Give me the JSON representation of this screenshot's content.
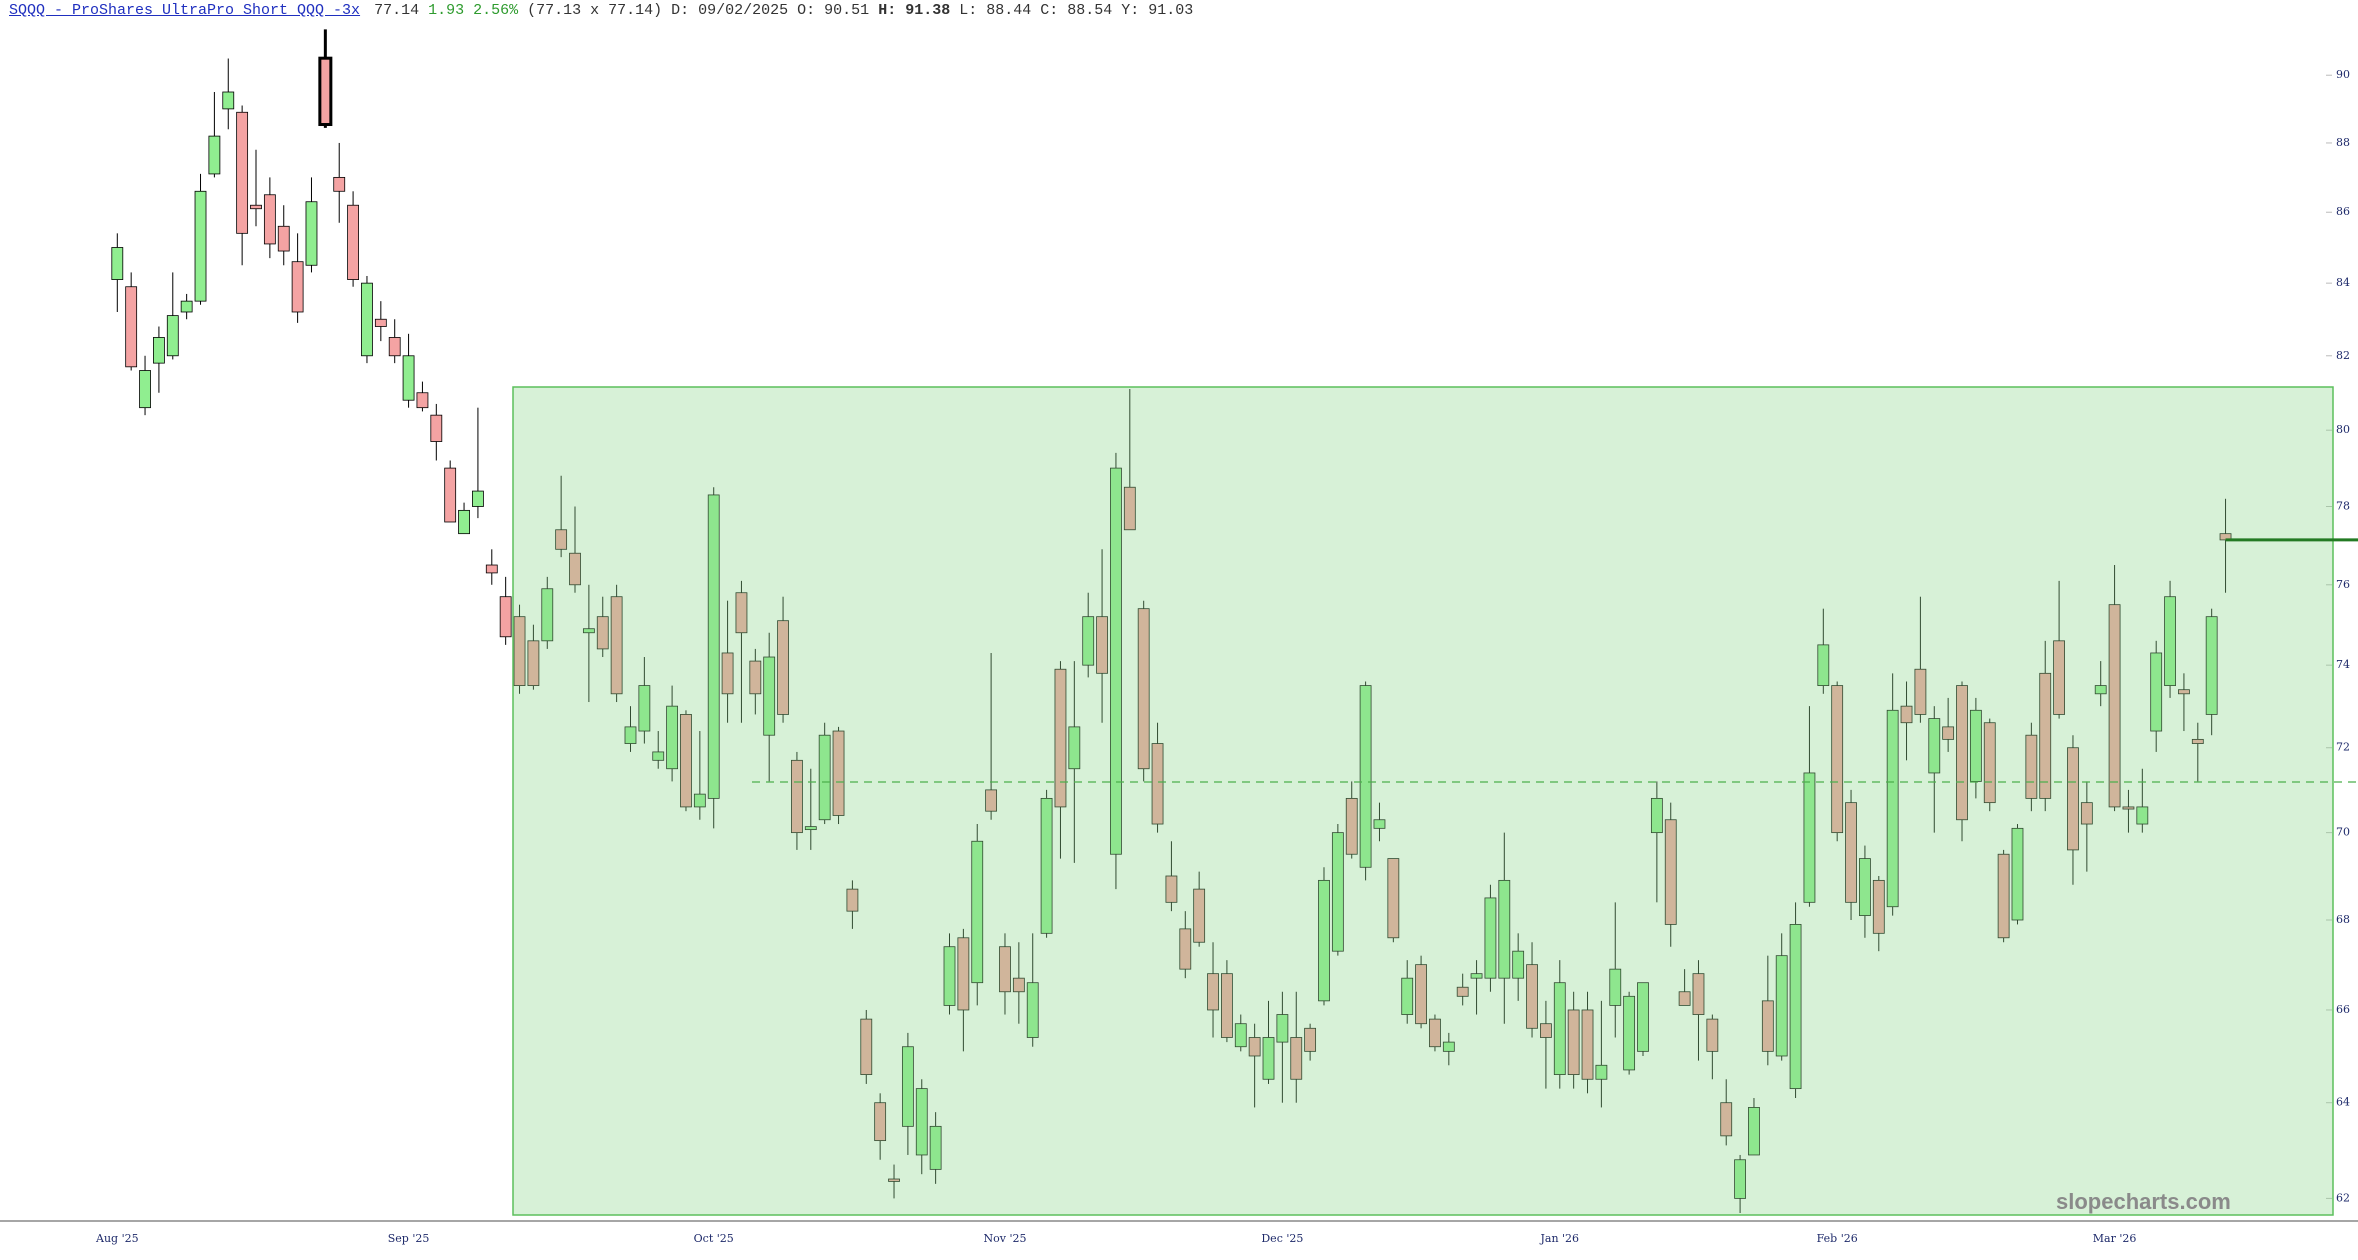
{
  "header": {
    "title": "SQQQ - ProShares UltraPro Short QQQ -3x",
    "last": "77.14",
    "change": "1.93",
    "change_pct": "2.56%",
    "quote": "(77.13 x 77.14)",
    "date": "D: 09/02/2025",
    "open": "O: 90.51",
    "high": "H: 91.38",
    "low": "L: 88.44",
    "close": "C: 88.54",
    "prev": "Y: 91.03"
  },
  "watermark": "slopecharts.com",
  "chart_data": {
    "type": "candlestick",
    "categories": [
      "Aug '25",
      null,
      null,
      null,
      null,
      null,
      null,
      null,
      null,
      null,
      null,
      null,
      null,
      null,
      null,
      null,
      null,
      null,
      null,
      null,
      null,
      "Sep '25",
      null,
      null,
      null,
      null,
      null,
      null,
      null,
      null,
      null,
      null,
      null,
      null,
      null,
      null,
      null,
      null,
      null,
      null,
      null,
      null,
      null,
      "Oct '25",
      null,
      null,
      null,
      null,
      null,
      null,
      null,
      null,
      null,
      null,
      null,
      null,
      null,
      null,
      null,
      null,
      null,
      null,
      null,
      null,
      "Nov '25",
      null,
      null,
      null,
      null,
      null,
      null,
      null,
      null,
      null,
      null,
      null,
      null,
      null,
      null,
      null,
      null,
      null,
      null,
      null,
      "Dec '25",
      null,
      null,
      null,
      null,
      null,
      null,
      null,
      null,
      null,
      null,
      null,
      null,
      null,
      null,
      null,
      null,
      null,
      null,
      null,
      "Jan '26",
      null,
      null,
      null,
      null,
      null,
      null,
      null,
      null,
      null,
      null,
      null,
      null,
      null,
      null,
      null,
      null,
      null,
      null,
      null,
      "Feb '26",
      null,
      null,
      null,
      null,
      null,
      null,
      null,
      null,
      null,
      null,
      null,
      null,
      null,
      null,
      null,
      null,
      null,
      null,
      null,
      "Mar '26",
      null,
      null,
      null,
      null,
      null,
      null,
      null,
      null
    ],
    "open": [
      84.1,
      83.9,
      80.6,
      81.8,
      82.0,
      83.2,
      83.5,
      87.1,
      89.0,
      88.9,
      86.2,
      86.5,
      85.6,
      84.6,
      84.5,
      90.51,
      87.0,
      86.2,
      82.0,
      83.0,
      82.5,
      80.8,
      81.0,
      80.4,
      79.0,
      77.3,
      78.0,
      76.5,
      75.7,
      75.2,
      74.6,
      74.6,
      77.4,
      76.8,
      74.8,
      75.2,
      75.7,
      72.1,
      72.4,
      71.7,
      71.5,
      72.8,
      70.6,
      70.8,
      74.3,
      75.8,
      74.1,
      72.3,
      75.1,
      71.7,
      70.07,
      70.3,
      72.4,
      68.7,
      65.8,
      64.0,
      62.4,
      63.5,
      62.9,
      62.6,
      66.1,
      67.6,
      66.6,
      71.0,
      67.4,
      66.7,
      65.4,
      67.7,
      73.9,
      71.5,
      74.0,
      75.2,
      69.5,
      78.5,
      75.4,
      72.1,
      69.0,
      67.8,
      68.7,
      66.8,
      66.8,
      65.2,
      65.4,
      64.5,
      65.3,
      65.4,
      65.6,
      66.2,
      67.3,
      70.8,
      69.2,
      70.1,
      69.4,
      65.9,
      67.0,
      65.8,
      65.1,
      66.5,
      66.7,
      66.7,
      66.7,
      66.7,
      67.0,
      65.7,
      64.6,
      66.0,
      66.0,
      64.5,
      66.1,
      64.7,
      65.1,
      70.0,
      70.3,
      66.4,
      66.8,
      65.8,
      64.0,
      62.0,
      62.9,
      66.2,
      65.0,
      64.3,
      68.4,
      73.5,
      73.5,
      70.7,
      68.1,
      68.9,
      68.3,
      73.0,
      73.9,
      71.4,
      72.5,
      73.5,
      71.2,
      72.6,
      69.5,
      68.0,
      72.3,
      73.8,
      74.6,
      72.0,
      70.7,
      73.3,
      75.5,
      70.6,
      70.2,
      72.4,
      73.5,
      73.4,
      72.2,
      72.8,
      77.3
    ],
    "high": [
      85.4,
      84.3,
      82.0,
      82.8,
      84.3,
      83.7,
      87.1,
      89.5,
      90.5,
      89.1,
      87.8,
      87.0,
      86.2,
      85.4,
      87.0,
      91.38,
      88.0,
      86.6,
      84.2,
      83.5,
      83.0,
      82.6,
      81.3,
      80.7,
      79.2,
      78.1,
      80.6,
      76.9,
      76.2,
      75.5,
      75.0,
      76.2,
      78.8,
      78.0,
      76.0,
      75.7,
      76.0,
      73.0,
      74.2,
      72.4,
      73.5,
      72.9,
      72.4,
      78.5,
      75.6,
      76.1,
      74.4,
      74.8,
      75.7,
      71.9,
      71.5,
      72.6,
      72.5,
      68.9,
      66.0,
      64.2,
      62.7,
      65.5,
      64.5,
      63.8,
      67.7,
      67.8,
      70.2,
      74.3,
      67.7,
      67.5,
      67.7,
      71.0,
      74.1,
      74.1,
      75.8,
      76.9,
      79.4,
      81.1,
      75.6,
      72.6,
      69.8,
      68.2,
      69.1,
      67.5,
      67.1,
      65.9,
      65.7,
      66.2,
      66.4,
      66.4,
      65.7,
      69.2,
      70.2,
      71.2,
      73.6,
      70.7,
      69.4,
      67.1,
      67.2,
      65.9,
      65.5,
      66.8,
      67.1,
      68.8,
      70.0,
      67.7,
      67.5,
      66.2,
      67.1,
      66.4,
      66.4,
      66.2,
      68.4,
      66.4,
      66.6,
      71.2,
      70.7,
      66.9,
      67.1,
      65.9,
      64.5,
      62.9,
      64.1,
      67.2,
      67.7,
      68.4,
      73.0,
      75.4,
      73.6,
      71.0,
      69.7,
      69.0,
      73.8,
      73.6,
      75.7,
      73.0,
      73.2,
      73.6,
      73.2,
      72.7,
      69.6,
      70.2,
      72.6,
      74.6,
      76.1,
      72.3,
      71.2,
      74.1,
      76.5,
      71.0,
      71.5,
      74.6,
      76.1,
      73.8,
      72.6,
      75.4,
      78.2
    ],
    "low": [
      83.2,
      81.6,
      80.4,
      81.0,
      81.9,
      83.0,
      83.4,
      87.0,
      88.4,
      84.5,
      85.6,
      84.7,
      84.5,
      82.9,
      84.3,
      88.44,
      85.7,
      83.9,
      81.8,
      82.4,
      81.8,
      80.6,
      80.5,
      79.2,
      77.6,
      77.3,
      77.7,
      76.0,
      74.5,
      73.3,
      73.4,
      74.4,
      76.7,
      75.8,
      73.1,
      74.2,
      73.1,
      71.9,
      72.1,
      71.5,
      71.2,
      70.5,
      70.3,
      70.1,
      72.6,
      72.6,
      72.8,
      71.2,
      72.6,
      69.6,
      69.6,
      70.2,
      70.2,
      67.8,
      64.4,
      62.8,
      62.0,
      62.9,
      62.5,
      62.3,
      65.9,
      65.1,
      66.1,
      70.3,
      65.9,
      65.7,
      65.2,
      67.6,
      69.4,
      69.3,
      73.7,
      72.6,
      68.7,
      77.4,
      71.2,
      70.0,
      68.2,
      66.7,
      67.4,
      65.4,
      65.3,
      65.1,
      63.9,
      64.4,
      64.0,
      64.0,
      64.9,
      66.1,
      67.2,
      69.4,
      68.9,
      69.8,
      67.5,
      65.7,
      65.6,
      65.1,
      64.8,
      66.1,
      65.9,
      66.4,
      65.7,
      66.2,
      65.4,
      64.3,
      64.3,
      64.3,
      64.2,
      63.9,
      65.4,
      64.6,
      65.0,
      68.4,
      67.4,
      66.1,
      64.9,
      64.5,
      63.1,
      61.7,
      62.9,
      64.8,
      64.9,
      64.1,
      68.3,
      73.3,
      69.8,
      68.0,
      67.6,
      67.3,
      68.1,
      71.7,
      72.6,
      70.0,
      71.9,
      69.8,
      70.8,
      70.5,
      67.5,
      67.9,
      70.5,
      70.5,
      72.7,
      68.8,
      69.1,
      73.0,
      70.5,
      70.0,
      70.0,
      71.9,
      73.2,
      72.4,
      71.2,
      72.3,
      75.8
    ],
    "close": [
      85.0,
      81.7,
      81.6,
      82.5,
      83.1,
      83.5,
      86.6,
      88.2,
      89.5,
      85.4,
      86.1,
      85.1,
      84.9,
      83.2,
      86.3,
      88.54,
      86.6,
      84.1,
      84.0,
      82.8,
      82.0,
      82.0,
      80.6,
      79.7,
      77.6,
      77.9,
      78.4,
      76.3,
      74.7,
      73.5,
      73.5,
      75.9,
      76.9,
      76.0,
      74.9,
      74.4,
      73.3,
      72.5,
      73.5,
      71.9,
      73.0,
      70.6,
      70.9,
      78.3,
      73.3,
      74.8,
      73.3,
      74.2,
      72.8,
      70.0,
      70.14,
      72.3,
      70.4,
      68.2,
      64.6,
      63.2,
      62.35,
      65.2,
      64.3,
      63.5,
      67.4,
      66.0,
      69.8,
      70.5,
      66.4,
      66.4,
      66.6,
      70.8,
      70.6,
      72.5,
      75.2,
      73.8,
      79.0,
      77.4,
      71.5,
      70.2,
      68.4,
      66.9,
      67.5,
      66.0,
      65.4,
      65.7,
      65.0,
      65.4,
      65.9,
      64.5,
      65.1,
      68.9,
      70.0,
      69.5,
      73.5,
      70.3,
      67.6,
      66.7,
      65.7,
      65.2,
      65.3,
      66.3,
      66.8,
      68.5,
      68.9,
      67.3,
      65.6,
      65.4,
      66.6,
      64.6,
      64.5,
      64.8,
      66.9,
      66.3,
      66.6,
      70.8,
      67.9,
      66.1,
      65.9,
      65.1,
      63.3,
      62.8,
      63.9,
      65.1,
      67.2,
      67.9,
      71.4,
      74.5,
      70.0,
      68.4,
      69.4,
      67.7,
      72.9,
      72.6,
      72.8,
      72.7,
      72.2,
      70.3,
      72.9,
      70.7,
      67.6,
      70.1,
      70.8,
      70.8,
      72.8,
      69.6,
      70.2,
      73.5,
      70.6,
      70.55,
      70.6,
      74.3,
      75.7,
      73.3,
      72.1,
      75.2,
      77.14
    ],
    "up_color": "#90ee90",
    "down_color": "#f4a3a3",
    "highlight_index": 15,
    "ylim": [
      61.5,
      91.5
    ],
    "yticks": [
      62,
      64,
      66,
      68,
      70,
      72,
      74,
      76,
      78,
      80,
      82,
      84,
      86,
      88,
      90
    ],
    "log_scale": true
  }
}
